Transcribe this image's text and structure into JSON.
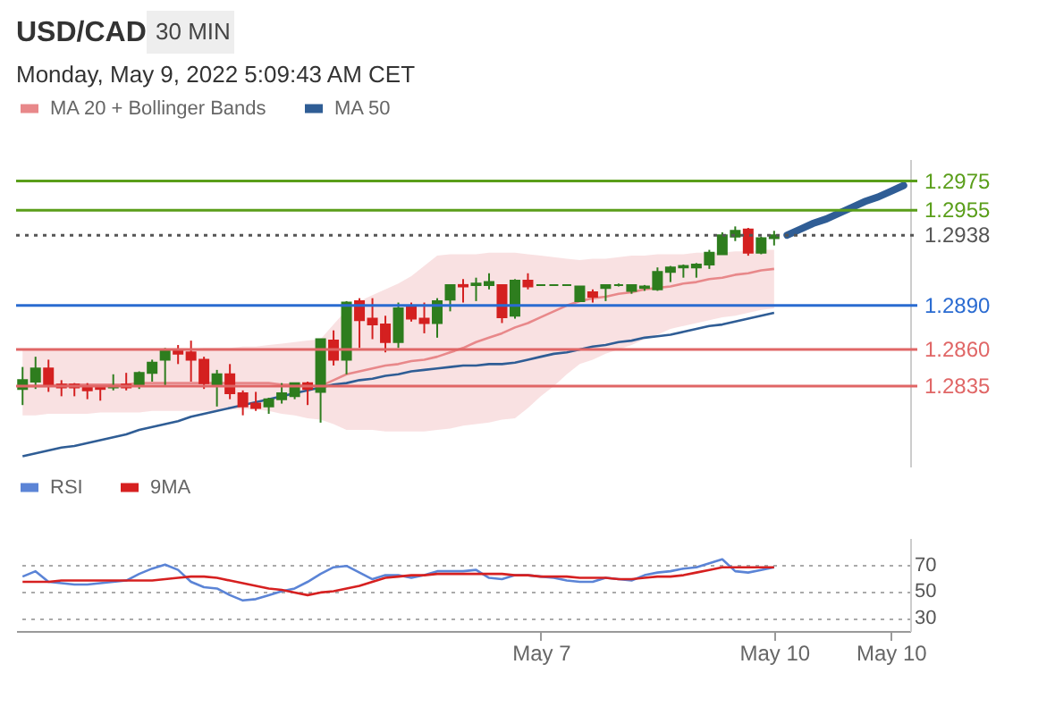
{
  "chart_data": [
    {
      "type": "candlestick",
      "title": "USD/CAD",
      "subtitle": "30 MIN",
      "annotations": [
        "Monday, May 9, 2022 5:09:43 AM CET"
      ],
      "categories": [
        null,
        null,
        null,
        null,
        null,
        null,
        null,
        null,
        null,
        null,
        null,
        null,
        null,
        null,
        null,
        null,
        null,
        null,
        null,
        null,
        null,
        null,
        null,
        null,
        null,
        null,
        null,
        null,
        null,
        null,
        null,
        null,
        null,
        null,
        null,
        null,
        null,
        null,
        null,
        null,
        null,
        null,
        null,
        null,
        null,
        null,
        null,
        null,
        null,
        null,
        null,
        null,
        null,
        null,
        null,
        null,
        null,
        null,
        null,
        null,
        null,
        null,
        null,
        null,
        null,
        null,
        null,
        null,
        null
      ],
      "ohlc": [
        [
          1.2833,
          1.2848,
          1.2822,
          1.2839
        ],
        [
          1.2838,
          1.2855,
          1.2833,
          1.2847
        ],
        [
          1.2847,
          1.2853,
          1.2831,
          1.2835
        ],
        [
          1.2836,
          1.2839,
          1.2828,
          1.2834
        ],
        [
          1.2836,
          1.2837,
          1.2828,
          1.2834
        ],
        [
          1.2835,
          1.2837,
          1.2826,
          1.2832
        ],
        [
          1.2834,
          1.2835,
          1.2825,
          1.2833
        ],
        [
          1.2834,
          1.2843,
          1.2832,
          1.2835
        ],
        [
          1.2836,
          1.2844,
          1.2832,
          1.2834
        ],
        [
          1.2836,
          1.2845,
          1.2833,
          1.2844
        ],
        [
          1.2844,
          1.2853,
          1.2838,
          1.2851
        ],
        [
          1.2853,
          1.2861,
          1.2835,
          1.2859
        ],
        [
          1.286,
          1.2863,
          1.285,
          1.2857
        ],
        [
          1.2858,
          1.2866,
          1.2838,
          1.2853
        ],
        [
          1.2853,
          1.2855,
          1.2833,
          1.2837
        ],
        [
          1.2835,
          1.2846,
          1.2821,
          1.2843
        ],
        [
          1.2843,
          1.285,
          1.2826,
          1.283
        ],
        [
          1.283,
          1.2832,
          1.2815,
          1.2821
        ],
        [
          1.2823,
          1.2831,
          1.2818,
          1.282
        ],
        [
          1.2821,
          1.2827,
          1.2816,
          1.2826
        ],
        [
          1.2826,
          1.2837,
          1.2823,
          1.283
        ],
        [
          1.2828,
          1.2837,
          1.2826,
          1.2837
        ],
        [
          1.2837,
          1.2838,
          1.2822,
          1.2833
        ],
        [
          1.2831,
          1.2867,
          1.281,
          1.2867
        ],
        [
          1.2866,
          1.2873,
          1.2849,
          1.2853
        ],
        [
          1.2853,
          1.2893,
          1.2843,
          1.2892
        ],
        [
          1.2893,
          1.2895,
          1.2861,
          1.288
        ],
        [
          1.2881,
          1.2895,
          1.2867,
          1.2877
        ],
        [
          1.2877,
          1.2883,
          1.2858,
          1.2865
        ],
        [
          1.2865,
          1.2892,
          1.2861,
          1.2888
        ],
        [
          1.2889,
          1.2892,
          1.2879,
          1.2881
        ],
        [
          1.2881,
          1.2892,
          1.2871,
          1.2878
        ],
        [
          1.2878,
          1.2895,
          1.2868,
          1.2893
        ],
        [
          1.2894,
          1.2904,
          1.2886,
          1.2904
        ],
        [
          1.2904,
          1.2908,
          1.2892,
          1.2903
        ],
        [
          1.2904,
          1.2909,
          1.2893,
          1.2905
        ],
        [
          1.2904,
          1.2912,
          1.2901,
          1.2906
        ],
        [
          1.2904,
          1.2904,
          1.2878,
          1.2882
        ],
        [
          1.2883,
          1.2908,
          1.2881,
          1.2907
        ],
        [
          1.2907,
          1.2912,
          1.2901,
          1.2903
        ],
        [
          1.2904,
          1.2904,
          1.2904,
          1.2904
        ],
        [
          1.2904,
          1.2904,
          1.2904,
          1.2904
        ],
        [
          1.2904,
          1.2904,
          1.2904,
          1.2904
        ],
        [
          1.2893,
          1.2903,
          1.2893,
          1.2903
        ],
        [
          1.2899,
          1.2901,
          1.2892,
          1.2896
        ],
        [
          1.2902,
          1.2904,
          1.2893,
          1.2904
        ],
        [
          1.2904,
          1.2905,
          1.2903,
          1.2904
        ],
        [
          1.29,
          1.2904,
          1.2898,
          1.2904
        ],
        [
          1.2902,
          1.2904,
          1.29,
          1.2903
        ],
        [
          1.2901,
          1.2916,
          1.29,
          1.2913
        ],
        [
          1.2913,
          1.2917,
          1.2906,
          1.2916
        ],
        [
          1.2916,
          1.2918,
          1.2909,
          1.2917
        ],
        [
          1.2916,
          1.2919,
          1.2909,
          1.2918
        ],
        [
          1.2918,
          1.2928,
          1.2915,
          1.2926
        ],
        [
          1.2925,
          1.294,
          1.2925,
          1.2938
        ],
        [
          1.2937,
          1.2944,
          1.2934,
          1.2941
        ],
        [
          1.2942,
          1.2943,
          1.2924,
          1.2926
        ],
        [
          1.2926,
          1.2937,
          1.2925,
          1.2936
        ],
        [
          1.2936,
          1.2941,
          1.2931,
          1.2938
        ],
        null,
        null,
        null,
        null,
        null,
        null,
        null,
        null,
        null,
        null
      ],
      "series": [
        {
          "name": "MA 20 + Bollinger Bands",
          "type": "line",
          "color": "#e8888a",
          "values": [
            1.2835,
            1.2835,
            1.2835,
            1.2836,
            1.2836,
            1.2836,
            1.2836,
            1.2836,
            1.2836,
            1.2837,
            1.2837,
            1.2837,
            1.2837,
            1.2837,
            1.2837,
            1.2837,
            1.2837,
            1.2837,
            1.2837,
            1.2837,
            1.2836,
            1.2836,
            1.2835,
            1.2835,
            1.2839,
            1.2843,
            1.2845,
            1.2847,
            1.2849,
            1.285,
            1.2852,
            1.2853,
            1.2855,
            1.2858,
            1.2861,
            1.2865,
            1.2868,
            1.2871,
            1.2875,
            1.2878,
            1.2882,
            1.2886,
            1.289,
            1.2893,
            1.2895,
            1.2896,
            1.2898,
            1.2899,
            1.2901,
            1.2902,
            1.2903,
            1.2905,
            1.2906,
            1.2908,
            1.2909,
            1.2911,
            1.2912,
            1.2914,
            1.2915,
            null,
            null,
            null,
            null,
            null,
            null,
            null,
            null,
            null,
            null
          ],
          "lower": [
            1.2815,
            1.2815,
            1.2816,
            1.2816,
            1.2816,
            1.2816,
            1.2817,
            1.2817,
            1.2817,
            1.2817,
            1.2818,
            1.2818,
            1.2818,
            1.2818,
            1.2818,
            1.2818,
            1.2819,
            1.2819,
            1.2819,
            1.2818,
            1.2816,
            1.2815,
            1.2813,
            1.2812,
            1.2809,
            1.2805,
            1.2805,
            1.2805,
            1.2804,
            1.2804,
            1.2804,
            1.2804,
            1.2805,
            1.2806,
            1.2808,
            1.2809,
            1.281,
            1.2812,
            1.2813,
            1.282,
            1.2828,
            1.2835,
            1.2843,
            1.285,
            1.2853,
            1.2857,
            1.286,
            1.2863,
            1.2867,
            1.287,
            1.2874,
            1.2876,
            1.2878,
            1.288,
            1.2882,
            1.2883,
            1.2885,
            1.2887,
            1.2888,
            null,
            null,
            null,
            null,
            null,
            null,
            null,
            null,
            null,
            null
          ],
          "upper": [
            1.286,
            1.286,
            1.286,
            1.286,
            1.286,
            1.286,
            1.286,
            1.286,
            1.286,
            1.286,
            1.286,
            1.286,
            1.286,
            1.286,
            1.2861,
            1.2861,
            1.2861,
            1.2862,
            1.2862,
            1.2863,
            1.2864,
            1.2865,
            1.2866,
            1.2867,
            1.2877,
            1.2887,
            1.2893,
            1.2897,
            1.2901,
            1.2905,
            1.291,
            1.2917,
            1.2924,
            1.2925,
            1.2925,
            1.2925,
            1.2926,
            1.2926,
            1.2926,
            1.2925,
            1.2924,
            1.2923,
            1.2922,
            1.2921,
            1.2922,
            1.2922,
            1.2923,
            1.2924,
            1.2924,
            1.2925,
            1.2925,
            1.2925,
            1.2926,
            1.2926,
            1.2926,
            1.2927,
            1.2927,
            1.2928,
            1.2928,
            null,
            null,
            null,
            null,
            null,
            null,
            null,
            null,
            null,
            null
          ]
        },
        {
          "name": "MA 50",
          "type": "line",
          "color": "#2f5d95",
          "values": [
            1.2787,
            1.2789,
            1.2791,
            1.2793,
            1.2794,
            1.2796,
            1.2798,
            1.28,
            1.2802,
            1.2805,
            1.2807,
            1.2809,
            1.2811,
            1.2814,
            1.2816,
            1.2818,
            1.282,
            1.2822,
            1.2824,
            1.2826,
            1.2828,
            1.283,
            1.2832,
            1.2834,
            1.2836,
            1.2837,
            1.2839,
            1.284,
            1.2842,
            1.2843,
            1.2845,
            1.2846,
            1.2847,
            1.2848,
            1.2849,
            1.2849,
            1.285,
            1.285,
            1.2851,
            1.2853,
            1.2855,
            1.2857,
            1.2858,
            1.286,
            1.2862,
            1.2863,
            1.2865,
            1.2866,
            1.2868,
            1.2869,
            1.287,
            1.2872,
            1.2874,
            1.2876,
            1.2877,
            1.2879,
            1.2881,
            1.2883,
            1.2885,
            null,
            null,
            null,
            null,
            null,
            null,
            null,
            null,
            null,
            null
          ]
        },
        {
          "type": "line",
          "color": "#2f5d95",
          "values": [
            null,
            null,
            null,
            null,
            null,
            null,
            null,
            null,
            null,
            null,
            null,
            null,
            null,
            null,
            null,
            null,
            null,
            null,
            null,
            null,
            null,
            null,
            null,
            null,
            null,
            null,
            null,
            null,
            null,
            null,
            null,
            null,
            null,
            null,
            null,
            null,
            null,
            null,
            null,
            null,
            null,
            null,
            null,
            null,
            null,
            null,
            null,
            null,
            null,
            null,
            null,
            null,
            null,
            null,
            null,
            null,
            null,
            null,
            null,
            1.2938,
            1.2942,
            1.2946,
            1.2949,
            1.2953,
            1.2957,
            1.2961,
            1.2964,
            1.2968,
            1.2972
          ]
        }
      ],
      "ref_lines": [
        {
          "axis": "y",
          "value": 1.2975,
          "label": "1.2975",
          "color": "#5a9e1a",
          "line_style": "solid"
        },
        {
          "axis": "y",
          "value": 1.2955,
          "label": "1.2955",
          "color": "#5a9e1a",
          "line_style": "solid"
        },
        {
          "axis": "y",
          "value": 1.2938,
          "label": "1.2938",
          "color": "#555555",
          "line_style": "dotted"
        },
        {
          "axis": "y",
          "value": 1.289,
          "label": "1.2890",
          "color": "#2a6bd1",
          "line_style": "solid"
        },
        {
          "axis": "y",
          "value": 1.286,
          "label": "1.2860",
          "color": "#e06666",
          "line_style": "solid"
        },
        {
          "axis": "y",
          "value": 1.2835,
          "label": "1.2835",
          "color": "#e06666",
          "line_style": "solid"
        }
      ],
      "ylim": [
        1.278,
        1.299
      ],
      "legend": "top",
      "tick_labels": false
    },
    {
      "type": "line",
      "categories": [
        null,
        null,
        null,
        null,
        null,
        null,
        null,
        null,
        null,
        null,
        null,
        null,
        null,
        null,
        null,
        null,
        null,
        null,
        null,
        null,
        null,
        null,
        null,
        null,
        null,
        null,
        null,
        null,
        null,
        null,
        null,
        null,
        null,
        null,
        null,
        null,
        null,
        null,
        null,
        null,
        "May 7",
        null,
        null,
        null,
        null,
        null,
        null,
        null,
        null,
        null,
        null,
        null,
        null,
        null,
        null,
        null,
        null,
        null,
        "May 10",
        null,
        null,
        null,
        null,
        null,
        null,
        null,
        null,
        "May 10",
        null
      ],
      "series": [
        {
          "name": "RSI",
          "color": "#5b84d6",
          "values": [
            61,
            65,
            57,
            56,
            55,
            55,
            56,
            57,
            58,
            63,
            67,
            70,
            66,
            57,
            53,
            52,
            47,
            43,
            44,
            47,
            50,
            52,
            57,
            63,
            68,
            69,
            64,
            59,
            62,
            62,
            60,
            62,
            65,
            65,
            65,
            66,
            60,
            59,
            62,
            62,
            61,
            60,
            58,
            57,
            57,
            60,
            59,
            58,
            62,
            64,
            65,
            67,
            68,
            71,
            74,
            65,
            64,
            66,
            68,
            null,
            null,
            null,
            null,
            null,
            null,
            null,
            null,
            null,
            null
          ]
        },
        {
          "name": "9MA",
          "color": "#d62020",
          "values": [
            57,
            57,
            57,
            58,
            58,
            58,
            58,
            58,
            58,
            58,
            58,
            59,
            60,
            61,
            61,
            60,
            58,
            56,
            54,
            52,
            51,
            49,
            47,
            49,
            50,
            52,
            54,
            57,
            60,
            61,
            62,
            62,
            63,
            63,
            63,
            63,
            63,
            63,
            62,
            62,
            61,
            61,
            61,
            60,
            60,
            60,
            59,
            59,
            60,
            61,
            61,
            62,
            64,
            66,
            68,
            68,
            68,
            68,
            68,
            null,
            null,
            null,
            null,
            null,
            null,
            null,
            null,
            null,
            null
          ]
        }
      ],
      "ylim": [
        20,
        90
      ],
      "yticks": [
        30,
        50,
        70
      ],
      "grid": "y",
      "legend": "top"
    }
  ]
}
